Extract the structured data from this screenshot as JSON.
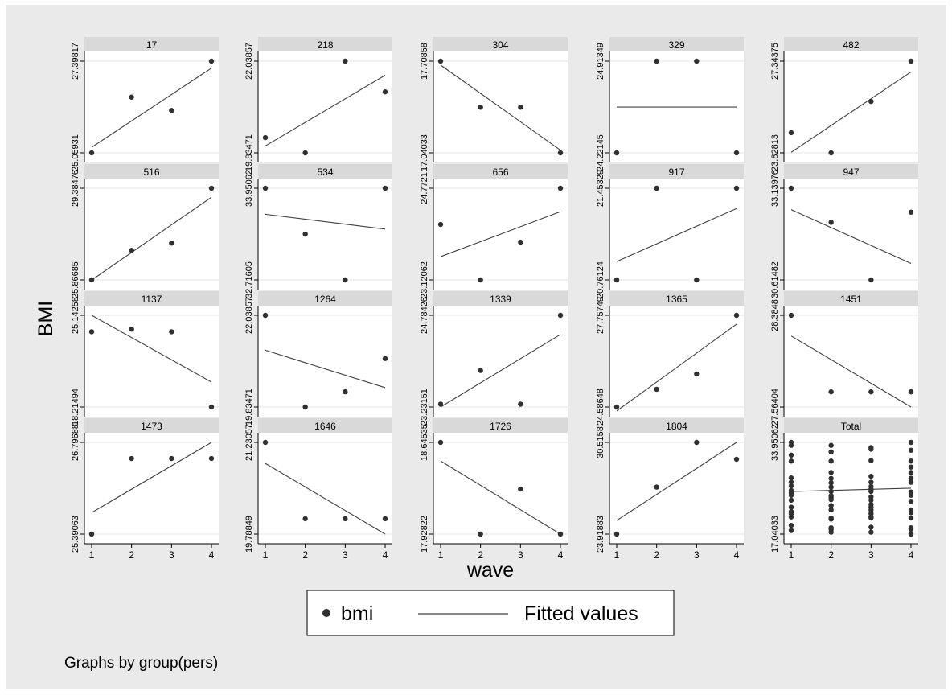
{
  "chart_data": {
    "type": "scatter",
    "ylabel": "BMI",
    "xlabel": "wave",
    "x_ticks": [
      1,
      2,
      3,
      4
    ],
    "x_tick_labels": [
      "1",
      "2",
      "3",
      "4"
    ],
    "legend": {
      "placement": "bottom-center",
      "marker_label": "bmi",
      "line_label": "Fitted values"
    },
    "note": "Graphs by group(pers)",
    "colors": {
      "marker": "#303030",
      "fit_line": "#404040",
      "header": "#d9d9d9",
      "plot_bg": "#ffffff",
      "outer_bg": "#eaeaea"
    },
    "panels": [
      {
        "title": "17",
        "y_ticks": [
          "27.39817",
          "25.05931"
        ],
        "ylim": [
          25.05931,
          27.39817
        ],
        "points": [
          [
            1,
            25.05931
          ],
          [
            2,
            26.48
          ],
          [
            3,
            26.14
          ],
          [
            4,
            27.39817
          ]
        ],
        "fit": [
          [
            1,
            25.2
          ],
          [
            4,
            27.22
          ]
        ]
      },
      {
        "title": "218",
        "y_ticks": [
          "22.03857",
          "19.83471"
        ],
        "ylim": [
          19.83471,
          22.03857
        ],
        "points": [
          [
            1,
            20.2
          ],
          [
            2,
            19.83471
          ],
          [
            3,
            22.03857
          ],
          [
            4,
            21.3
          ]
        ],
        "fit": [
          [
            1,
            20.0
          ],
          [
            4,
            21.7
          ]
        ]
      },
      {
        "title": "304",
        "y_ticks": [
          "17.70858",
          "17.04033"
        ],
        "ylim": [
          17.04033,
          17.70858
        ],
        "points": [
          [
            1,
            17.70858
          ],
          [
            2,
            17.373
          ],
          [
            3,
            17.373
          ],
          [
            4,
            17.04033
          ]
        ],
        "fit": [
          [
            1,
            17.68
          ],
          [
            4,
            17.06
          ]
        ]
      },
      {
        "title": "329",
        "y_ticks": [
          "24.91349",
          "24.22145"
        ],
        "ylim": [
          24.22145,
          24.91349
        ],
        "points": [
          [
            1,
            24.22145
          ],
          [
            2,
            24.91349
          ],
          [
            3,
            24.91349
          ],
          [
            4,
            24.22145
          ]
        ],
        "fit": [
          [
            1,
            24.567
          ],
          [
            4,
            24.567
          ]
        ]
      },
      {
        "title": "482",
        "y_ticks": [
          "27.34375",
          "23.82813"
        ],
        "ylim": [
          23.82813,
          27.34375
        ],
        "points": [
          [
            1,
            24.6
          ],
          [
            2,
            23.82813
          ],
          [
            3,
            25.8
          ],
          [
            4,
            27.34375
          ]
        ],
        "fit": [
          [
            1,
            23.85
          ],
          [
            4,
            26.93
          ]
        ]
      },
      {
        "title": "516",
        "y_ticks": [
          "29.38476",
          "25.86685"
        ],
        "ylim": [
          25.86685,
          29.38476
        ],
        "points": [
          [
            1,
            25.86685
          ],
          [
            2,
            27.0
          ],
          [
            3,
            27.28
          ],
          [
            4,
            29.38476
          ]
        ],
        "fit": [
          [
            1,
            25.86
          ],
          [
            4,
            29.04
          ]
        ]
      },
      {
        "title": "534",
        "y_ticks": [
          "33.95062",
          "32.71605"
        ],
        "ylim": [
          32.71605,
          33.95062
        ],
        "points": [
          [
            1,
            33.95062
          ],
          [
            2,
            33.333
          ],
          [
            3,
            32.71605
          ],
          [
            4,
            33.95062
          ]
        ],
        "fit": [
          [
            1,
            33.6
          ],
          [
            4,
            33.4
          ]
        ]
      },
      {
        "title": "656",
        "y_ticks": [
          "24.7721",
          "23.12062"
        ],
        "ylim": [
          23.12062,
          24.7721
        ],
        "points": [
          [
            1,
            24.12
          ],
          [
            2,
            23.12062
          ],
          [
            3,
            23.8
          ],
          [
            4,
            24.7721
          ]
        ],
        "fit": [
          [
            1,
            23.54
          ],
          [
            4,
            24.35
          ]
        ]
      },
      {
        "title": "917",
        "y_ticks": [
          "21.45329",
          "20.76124"
        ],
        "ylim": [
          20.76124,
          21.45329
        ],
        "points": [
          [
            1,
            20.76124
          ],
          [
            2,
            21.45329
          ],
          [
            3,
            20.76124
          ],
          [
            4,
            21.45329
          ]
        ],
        "fit": [
          [
            1,
            20.9
          ],
          [
            4,
            21.3
          ]
        ]
      },
      {
        "title": "947",
        "y_ticks": [
          "33.13976",
          "30.61482"
        ],
        "ylim": [
          30.61482,
          33.13976
        ],
        "points": [
          [
            1,
            33.13976
          ],
          [
            2,
            32.2
          ],
          [
            3,
            30.61482
          ],
          [
            4,
            32.48
          ]
        ],
        "fit": [
          [
            1,
            32.55
          ],
          [
            4,
            31.07
          ]
        ]
      },
      {
        "title": "1137",
        "y_ticks": [
          "25.14258",
          "18.21494"
        ],
        "ylim": [
          18.21494,
          25.14258
        ],
        "points": [
          [
            1,
            23.9
          ],
          [
            2,
            24.1
          ],
          [
            3,
            23.9
          ],
          [
            4,
            18.21494
          ]
        ],
        "fit": [
          [
            1,
            25.14258
          ],
          [
            4,
            20.1
          ]
        ]
      },
      {
        "title": "1264",
        "y_ticks": [
          "22.03857",
          "19.83471"
        ],
        "ylim": [
          19.83471,
          22.03857
        ],
        "points": [
          [
            1,
            22.03857
          ],
          [
            2,
            19.83471
          ],
          [
            3,
            20.2
          ],
          [
            4,
            21.0
          ]
        ],
        "fit": [
          [
            1,
            21.2
          ],
          [
            4,
            20.3
          ]
        ]
      },
      {
        "title": "1339",
        "y_ticks": [
          "24.78426",
          "23.23151"
        ],
        "ylim": [
          23.23151,
          24.78426
        ],
        "points": [
          [
            1,
            23.28
          ],
          [
            2,
            23.85
          ],
          [
            3,
            23.28
          ],
          [
            4,
            24.78426
          ]
        ],
        "fit": [
          [
            1,
            23.23151
          ],
          [
            4,
            24.46
          ]
        ]
      },
      {
        "title": "1365",
        "y_ticks": [
          "27.75749",
          "24.58648"
        ],
        "ylim": [
          24.58648,
          27.75749
        ],
        "points": [
          [
            1,
            24.58648
          ],
          [
            2,
            25.2
          ],
          [
            3,
            25.73
          ],
          [
            4,
            27.75749
          ]
        ],
        "fit": [
          [
            1,
            24.45
          ],
          [
            4,
            27.45
          ]
        ]
      },
      {
        "title": "1451",
        "y_ticks": [
          "28.3848",
          "27.56404"
        ],
        "ylim": [
          27.56404,
          28.3848
        ],
        "points": [
          [
            1,
            28.3848
          ],
          [
            2,
            27.7
          ],
          [
            3,
            27.7
          ],
          [
            4,
            27.7
          ]
        ],
        "fit": [
          [
            1,
            28.2
          ],
          [
            4,
            27.56404
          ]
        ]
      },
      {
        "title": "1473",
        "y_ticks": [
          "26.79688",
          "25.39063"
        ],
        "ylim": [
          25.39063,
          26.79688
        ],
        "points": [
          [
            1,
            25.39063
          ],
          [
            2,
            26.55
          ],
          [
            3,
            26.55
          ],
          [
            4,
            26.55
          ]
        ],
        "fit": [
          [
            1,
            25.72
          ],
          [
            4,
            26.79688
          ]
        ]
      },
      {
        "title": "1646",
        "y_ticks": [
          "21.23057",
          "19.78849"
        ],
        "ylim": [
          19.78849,
          21.23057
        ],
        "points": [
          [
            1,
            21.23057
          ],
          [
            2,
            20.03
          ],
          [
            3,
            20.03
          ],
          [
            4,
            20.03
          ]
        ],
        "fit": [
          [
            1,
            20.9
          ],
          [
            4,
            19.78849
          ]
        ]
      },
      {
        "title": "1726",
        "y_ticks": [
          "18.64535",
          "17.92822"
        ],
        "ylim": [
          17.92822,
          18.64535
        ],
        "points": [
          [
            1,
            18.64535
          ],
          [
            2,
            17.92822
          ],
          [
            3,
            18.28
          ],
          [
            4,
            17.92822
          ]
        ],
        "fit": [
          [
            1,
            18.5
          ],
          [
            4,
            17.92822
          ]
        ]
      },
      {
        "title": "1804",
        "y_ticks": [
          "30.5158",
          "23.91883"
        ],
        "ylim": [
          23.91883,
          30.5158
        ],
        "points": [
          [
            1,
            23.91883
          ],
          [
            2,
            27.3
          ],
          [
            3,
            30.5158
          ],
          [
            4,
            29.3
          ]
        ],
        "fit": [
          [
            1,
            24.9
          ],
          [
            4,
            30.5158
          ]
        ]
      },
      {
        "title": "Total",
        "y_ticks": [
          "33.95062",
          "17.04033"
        ],
        "ylim": [
          17.04033,
          33.95062
        ],
        "points": [
          [
            1,
            33.95062
          ],
          [
            1,
            33.4
          ],
          [
            1,
            31.6
          ],
          [
            1,
            30.5
          ],
          [
            1,
            27.4
          ],
          [
            1,
            26.6
          ],
          [
            1,
            25.9
          ],
          [
            1,
            25.06
          ],
          [
            1,
            24.6
          ],
          [
            1,
            24.2
          ],
          [
            1,
            23.3
          ],
          [
            1,
            22.0
          ],
          [
            1,
            21.2
          ],
          [
            1,
            20.8
          ],
          [
            1,
            20.2
          ],
          [
            1,
            18.65
          ],
          [
            1,
            17.7
          ],
          [
            2,
            33.4
          ],
          [
            2,
            32.2
          ],
          [
            2,
            30.5
          ],
          [
            2,
            28.4
          ],
          [
            2,
            27.3
          ],
          [
            2,
            26.5
          ],
          [
            2,
            25.7
          ],
          [
            2,
            24.9
          ],
          [
            2,
            24.1
          ],
          [
            2,
            23.8
          ],
          [
            2,
            23.4
          ],
          [
            2,
            22.3
          ],
          [
            2,
            21.5
          ],
          [
            2,
            20.0
          ],
          [
            2,
            19.8
          ],
          [
            2,
            18.2
          ],
          [
            2,
            17.9
          ],
          [
            2,
            17.4
          ],
          [
            3,
            33.0
          ],
          [
            3,
            32.7
          ],
          [
            3,
            30.6
          ],
          [
            3,
            27.7
          ],
          [
            3,
            26.6
          ],
          [
            3,
            25.8
          ],
          [
            3,
            25.3
          ],
          [
            3,
            24.9
          ],
          [
            3,
            23.9
          ],
          [
            3,
            23.3
          ],
          [
            3,
            22.5
          ],
          [
            3,
            22.0
          ],
          [
            3,
            21.5
          ],
          [
            3,
            20.8
          ],
          [
            3,
            20.2
          ],
          [
            3,
            20.0
          ],
          [
            3,
            18.3
          ],
          [
            3,
            17.4
          ],
          [
            4,
            33.95062
          ],
          [
            4,
            32.5
          ],
          [
            4,
            30.5
          ],
          [
            4,
            29.4
          ],
          [
            4,
            28.4
          ],
          [
            4,
            27.34
          ],
          [
            4,
            26.6
          ],
          [
            4,
            24.8
          ],
          [
            4,
            24.2
          ],
          [
            4,
            23.1
          ],
          [
            4,
            21.5
          ],
          [
            4,
            21.0
          ],
          [
            4,
            20.0
          ],
          [
            4,
            18.2
          ],
          [
            4,
            17.93
          ],
          [
            4,
            17.04033
          ]
        ],
        "fit": [
          [
            1,
            24.9
          ],
          [
            4,
            25.5
          ]
        ]
      }
    ]
  }
}
